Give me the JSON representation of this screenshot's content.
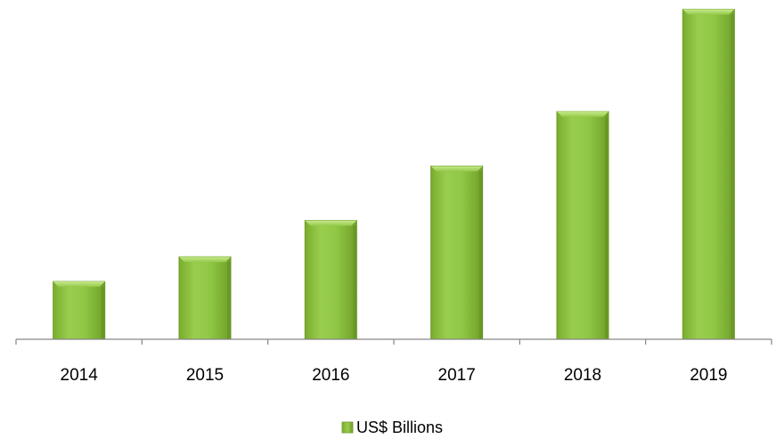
{
  "chart_data": {
    "type": "bar",
    "categories": [
      "2014",
      "2015",
      "2016",
      "2017",
      "2018",
      "2019"
    ],
    "series": [
      {
        "name": "US$ Billions",
        "values": [
          1.75,
          2.5,
          3.6,
          5.25,
          6.9,
          10.0
        ]
      }
    ],
    "title": "",
    "xlabel": "",
    "ylabel": "",
    "ylim": [
      0,
      10.2
    ],
    "y_axis_visible": false,
    "grid": false,
    "legend_position": "bottom-center",
    "bar_color": "#8dc63f",
    "bar_edge_color": "#6e9a2a",
    "bar_highlight_color": "#b8e07a",
    "axis_color": "#868686"
  }
}
